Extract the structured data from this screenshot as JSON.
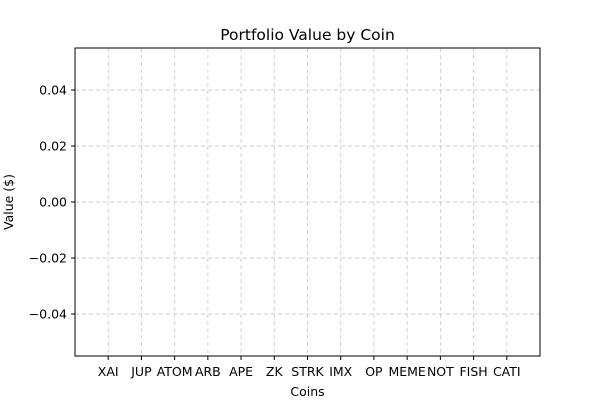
{
  "chart_data": {
    "type": "bar",
    "title": "Portfolio Value by Coin",
    "xlabel": "Coins",
    "ylabel": "Value ($)",
    "categories": [
      "XAI",
      "JUP",
      "ATOM",
      "ARB",
      "APE",
      "ZK",
      "STRK",
      "IMX",
      "OP",
      "MEME",
      "NOT",
      "FISH",
      "CATI"
    ],
    "values": [
      0,
      0,
      0,
      0,
      0,
      0,
      0,
      0,
      0,
      0,
      0,
      0,
      0
    ],
    "ylim": [
      -0.055,
      0.055
    ],
    "yticks": [
      -0.04,
      -0.02,
      0.0,
      0.02,
      0.04
    ],
    "ytick_labels": [
      "−0.04",
      "−0.02",
      "0.00",
      "0.02",
      "0.04"
    ],
    "grid": true,
    "bar_color": "#1f77b4"
  }
}
